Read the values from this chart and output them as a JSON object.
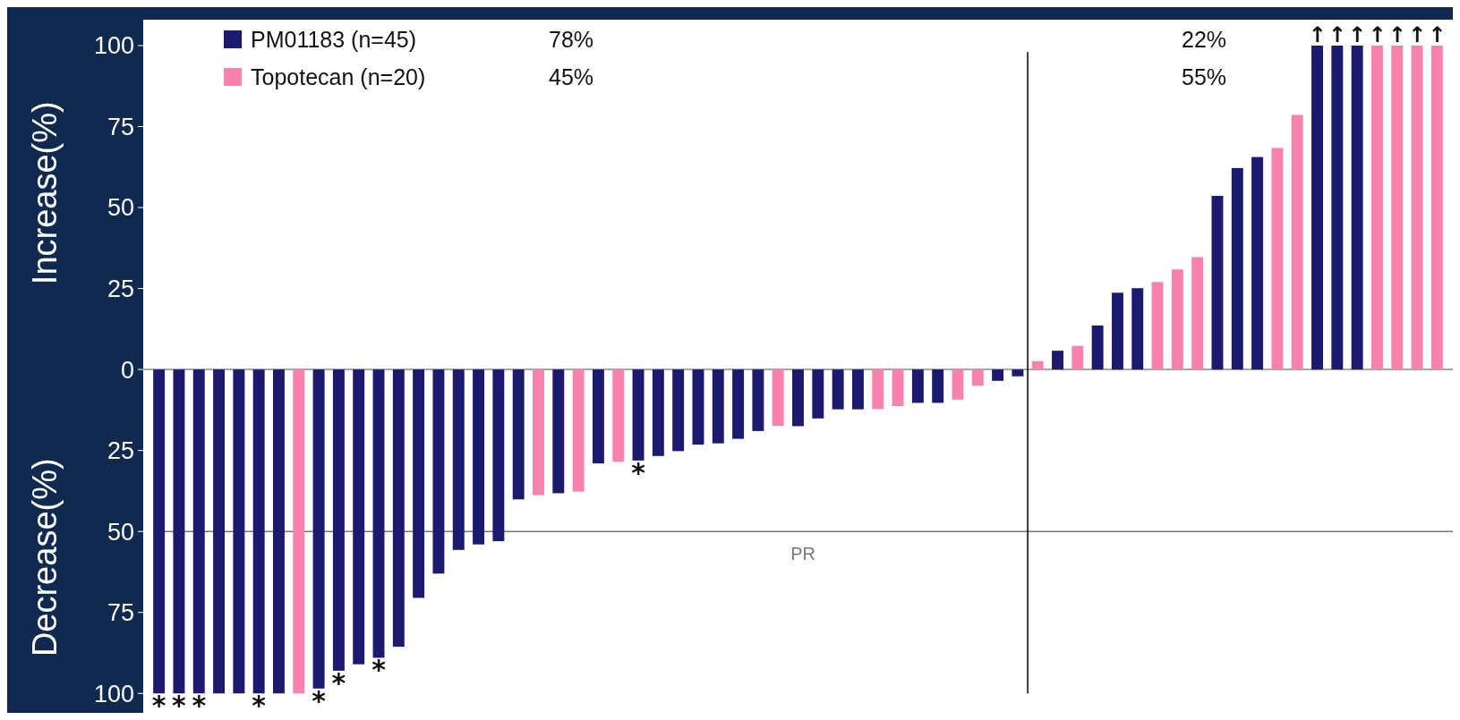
{
  "chart_data": {
    "type": "bar",
    "ylabel": "Decrease(%) Increase(%)",
    "categories": [
      null,
      null,
      null,
      null,
      null,
      null,
      null,
      null,
      null,
      null,
      null,
      null,
      null,
      null,
      null,
      null,
      null,
      null,
      null,
      null,
      null,
      null,
      null,
      null,
      null,
      null,
      null,
      null,
      null,
      null,
      null,
      null,
      null,
      null,
      null,
      null,
      null,
      null,
      null,
      null,
      null,
      null,
      null,
      null,
      null,
      null,
      null,
      null,
      null,
      null,
      null,
      null,
      null,
      null,
      null,
      null,
      null,
      null,
      null,
      null,
      null,
      null,
      null,
      null,
      null
    ],
    "series": [
      {
        "name": "PM01183 (n=45)",
        "color": "#1c1a6e",
        "values": [
          -100,
          -100,
          -100,
          -100,
          -100,
          -100,
          -100,
          null,
          -98.5,
          -93,
          -91,
          -89,
          -85.6,
          -70.5,
          -63,
          -55.7,
          -54,
          -53,
          -40.1,
          null,
          -38.2,
          null,
          -29,
          null,
          -28.1,
          -26.7,
          -25.2,
          -23.2,
          -22.8,
          -21.4,
          -19,
          null,
          -17.5,
          -15.1,
          -12.3,
          -12.3,
          null,
          null,
          -10.3,
          -10.3,
          null,
          null,
          -3.5,
          -2.1,
          null,
          5.8,
          null,
          13.6,
          23.7,
          25.1,
          null,
          null,
          null,
          53.6,
          62.2,
          65.6,
          null,
          null,
          100,
          100,
          100,
          null,
          null,
          null,
          null
        ],
        "value_labels": [
          "*",
          "*",
          "*",
          null,
          null,
          "*",
          null,
          null,
          "*",
          "*",
          null,
          "*",
          null,
          null,
          null,
          null,
          null,
          null,
          null,
          null,
          null,
          null,
          null,
          null,
          "*",
          null,
          null,
          null,
          null,
          null,
          null,
          null,
          null,
          null,
          null,
          null,
          null,
          null,
          null,
          null,
          null,
          null,
          null,
          null,
          null,
          null,
          null,
          null,
          null,
          null,
          null,
          null,
          null,
          null,
          null,
          null,
          null,
          null,
          "↑",
          "↑",
          "↑",
          null,
          null,
          null,
          null
        ]
      },
      {
        "name": "Topotecan (n=20)",
        "color": "#f783ac",
        "values": [
          null,
          null,
          null,
          null,
          null,
          null,
          null,
          -100,
          null,
          null,
          null,
          null,
          null,
          null,
          null,
          null,
          null,
          null,
          null,
          -38.8,
          null,
          -37.7,
          null,
          -28.5,
          null,
          null,
          null,
          null,
          null,
          null,
          null,
          -17.4,
          null,
          null,
          null,
          null,
          -12.2,
          -11.3,
          null,
          null,
          -9.3,
          -5,
          null,
          null,
          2.6,
          null,
          7.3,
          null,
          null,
          null,
          27,
          30.9,
          34.7,
          null,
          null,
          null,
          68.4,
          78.6,
          null,
          null,
          null,
          100,
          100,
          100,
          100
        ],
        "value_labels": [
          null,
          null,
          null,
          null,
          null,
          null,
          null,
          null,
          null,
          null,
          null,
          null,
          null,
          null,
          null,
          null,
          null,
          null,
          null,
          null,
          null,
          null,
          null,
          null,
          null,
          null,
          null,
          null,
          null,
          null,
          null,
          null,
          null,
          null,
          null,
          null,
          null,
          null,
          null,
          null,
          null,
          null,
          null,
          null,
          null,
          null,
          null,
          null,
          null,
          null,
          null,
          null,
          null,
          null,
          null,
          null,
          null,
          null,
          null,
          null,
          null,
          "↑",
          "↑",
          "↑",
          "↑"
        ]
      }
    ],
    "ylim": [
      -106,
      108
    ],
    "yticks": [
      100,
      75,
      50,
      25,
      0,
      {
        "value": -25,
        "label": "25"
      },
      {
        "value": -50,
        "label": "50"
      },
      {
        "value": -75,
        "label": "75"
      },
      {
        "value": -100,
        "label": "100"
      }
    ],
    "ref_lines": [
      {
        "axis": "y",
        "value": -50,
        "label": "PR",
        "color": "#777777"
      }
    ],
    "annotations": [
      "78%",
      "45%",
      "22%",
      "55%"
    ],
    "legend": "top left",
    "grid": false
  }
}
